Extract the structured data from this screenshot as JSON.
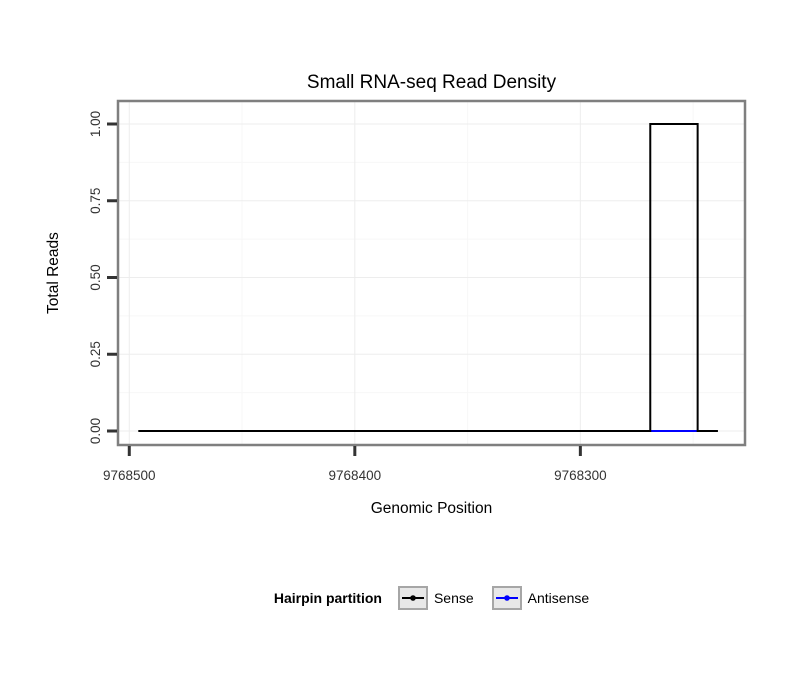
{
  "chart_data": {
    "type": "line",
    "title": "Small RNA-seq Read Density",
    "xlabel": "Genomic Position",
    "ylabel": "Total Reads",
    "x_reversed": true,
    "xlim": [
      9768505,
      9768227
    ],
    "ylim": [
      0,
      1
    ],
    "x_ticks": [
      {
        "value": 9768500,
        "label": "9768500"
      },
      {
        "value": 9768400,
        "label": "9768400"
      },
      {
        "value": 9768300,
        "label": "9768300"
      }
    ],
    "x_minor_ticks": [
      9768450,
      9768350,
      9768250
    ],
    "y_ticks": [
      {
        "value": 0,
        "label": "0.00"
      },
      {
        "value": 0.25,
        "label": "0.25"
      },
      {
        "value": 0.5,
        "label": "0.50"
      },
      {
        "value": 0.75,
        "label": "0.75"
      },
      {
        "value": 1,
        "label": "1.00"
      }
    ],
    "y_minor_ticks": [
      0.125,
      0.375,
      0.625,
      0.875
    ],
    "series": [
      {
        "name": "Antisense",
        "color": "#0000ff",
        "values": [
          [
            9768271,
            0
          ],
          [
            9768240,
            0
          ]
        ]
      },
      {
        "name": "Sense",
        "color": "#000000",
        "values": [
          [
            9768496,
            0
          ],
          [
            9768269,
            0
          ],
          [
            9768269,
            1
          ],
          [
            9768248,
            1
          ],
          [
            9768248,
            0
          ],
          [
            9768239,
            0
          ]
        ]
      }
    ],
    "legend": {
      "title": "Hairpin partition",
      "position": "bottom",
      "entries": [
        {
          "label": "Sense",
          "color": "#000000"
        },
        {
          "label": "Antisense",
          "color": "#0000ff"
        }
      ]
    },
    "grid": true
  },
  "colors": {
    "panel_border": "#7f7f7f",
    "grid_major": "#ededed",
    "grid_minor": "#f7f7f7",
    "tick": "#333333",
    "tick_label": "#333333",
    "legend_key_bg": "#e8e8e8",
    "legend_key_border": "#a6a6a6"
  }
}
